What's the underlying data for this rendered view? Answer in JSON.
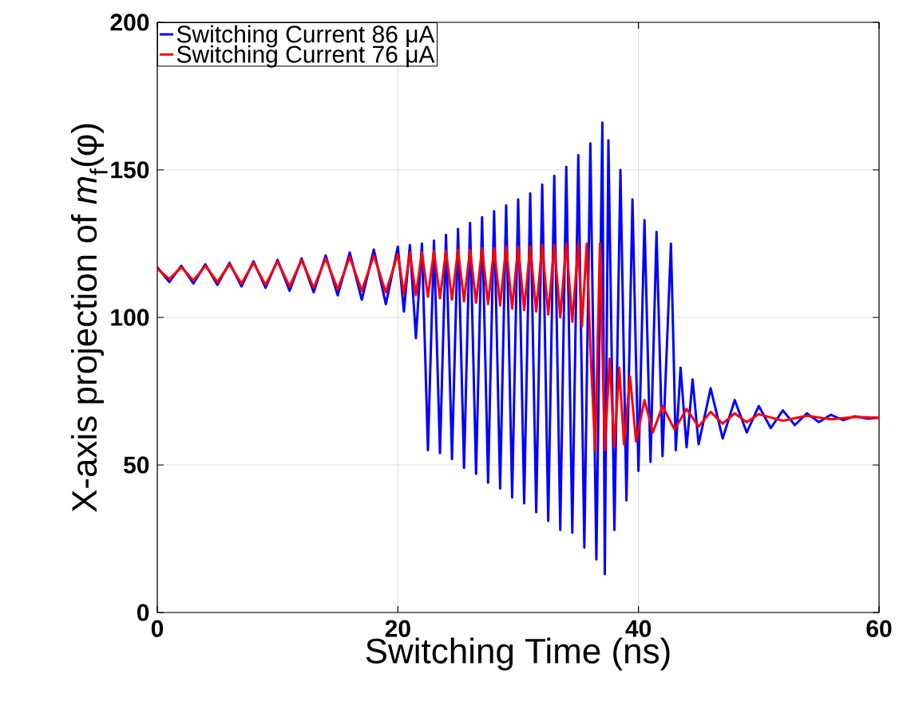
{
  "chart_data": {
    "type": "line",
    "xlabel": "Switching Time (ns)",
    "ylabel": "X-axis projection of *m*$_{f}$(φ)",
    "xlim": [
      0,
      60
    ],
    "ylim": [
      0,
      200
    ],
    "xticks": [
      0,
      20,
      40,
      60
    ],
    "yticks": [
      0,
      50,
      100,
      150,
      200
    ],
    "grid": true,
    "legend": "top left",
    "marker": "none",
    "line_style": "solid",
    "series": [
      {
        "name": "Switching Current 86 μA",
        "color": "#0000ff",
        "x": [
          0,
          1,
          2,
          3,
          4,
          5,
          6,
          7,
          8,
          9,
          10,
          11,
          12,
          13,
          14,
          15,
          16,
          17,
          18,
          19,
          20,
          20.5,
          21,
          21.5,
          22,
          22.5,
          23,
          23.5,
          24,
          24.5,
          25,
          25.5,
          26,
          26.5,
          27,
          27.5,
          28,
          28.5,
          29,
          29.5,
          30,
          30.5,
          31,
          31.5,
          32,
          32.5,
          33,
          33.5,
          34,
          34.5,
          35,
          35.5,
          36,
          36.5,
          37,
          37.2,
          37.5,
          38,
          38.5,
          39,
          39.5,
          40,
          40.5,
          41,
          41.5,
          42,
          42.7,
          42.9,
          43.1,
          43.5,
          44,
          44.5,
          45,
          46,
          47,
          48,
          49,
          50,
          51,
          52,
          53,
          54,
          55,
          56,
          57,
          58,
          59,
          60
        ],
        "values": [
          117,
          112,
          117.5,
          111.5,
          118,
          111,
          118.5,
          110.5,
          119,
          110,
          119.5,
          109,
          120,
          108.5,
          121,
          107.5,
          122,
          106,
          123,
          104.5,
          124,
          102,
          124.5,
          93,
          125,
          55,
          126,
          54,
          128,
          52,
          130,
          49,
          132,
          47,
          134,
          44,
          136,
          42,
          138,
          39,
          140,
          37,
          142,
          34,
          145,
          31,
          148,
          28,
          151,
          27,
          155,
          22,
          159,
          18,
          166,
          13,
          160,
          28,
          150,
          38,
          140,
          48,
          133,
          51,
          129,
          53,
          125,
          92,
          55,
          83,
          56,
          79,
          57,
          76,
          59,
          72,
          61,
          70,
          62.5,
          68.5,
          63.5,
          67.5,
          64.5,
          67,
          65.2,
          66.5,
          65.7,
          66
        ]
      },
      {
        "name": "Switching Current 76 μA",
        "color": "#ff0000",
        "x": [
          0,
          1,
          2,
          3,
          4,
          5,
          6,
          7,
          8,
          9,
          10,
          11,
          12,
          13,
          14,
          15,
          16,
          17,
          18,
          19,
          20,
          20.5,
          21,
          21.5,
          22,
          22.5,
          23,
          23.5,
          24,
          24.5,
          25,
          25.5,
          26,
          26.5,
          27,
          27.5,
          28,
          28.5,
          29,
          29.5,
          30,
          30.5,
          31,
          31.5,
          32,
          32.5,
          33,
          33.5,
          34,
          34.5,
          35,
          35.3,
          35.7,
          36,
          36.4,
          36.8,
          37.2,
          37.6,
          38,
          38.4,
          38.8,
          39.3,
          39.8,
          40.5,
          41.2,
          42,
          43,
          44,
          45,
          46,
          47,
          48,
          49,
          50,
          52,
          54,
          56,
          58,
          60
        ],
        "values": [
          116.5,
          113,
          117,
          112.5,
          117.5,
          112,
          118,
          111.5,
          118.5,
          111,
          119,
          110.5,
          119.5,
          110,
          120,
          109.5,
          120.5,
          109,
          121,
          108.5,
          121.5,
          108,
          122,
          107.5,
          122,
          107,
          122.5,
          106.5,
          122.5,
          106,
          123,
          105.5,
          123,
          105,
          123.5,
          104.5,
          123.5,
          104,
          124,
          103,
          124,
          102.5,
          124,
          102,
          124.5,
          101,
          124.5,
          100,
          125,
          98.5,
          125,
          97,
          125,
          90,
          55,
          125,
          55,
          86,
          56,
          83,
          57,
          80,
          58,
          72,
          61,
          70,
          62,
          69,
          63,
          68,
          64,
          67.5,
          64.5,
          67.2,
          65,
          66.7,
          65.5,
          66.3,
          66
        ]
      }
    ]
  }
}
